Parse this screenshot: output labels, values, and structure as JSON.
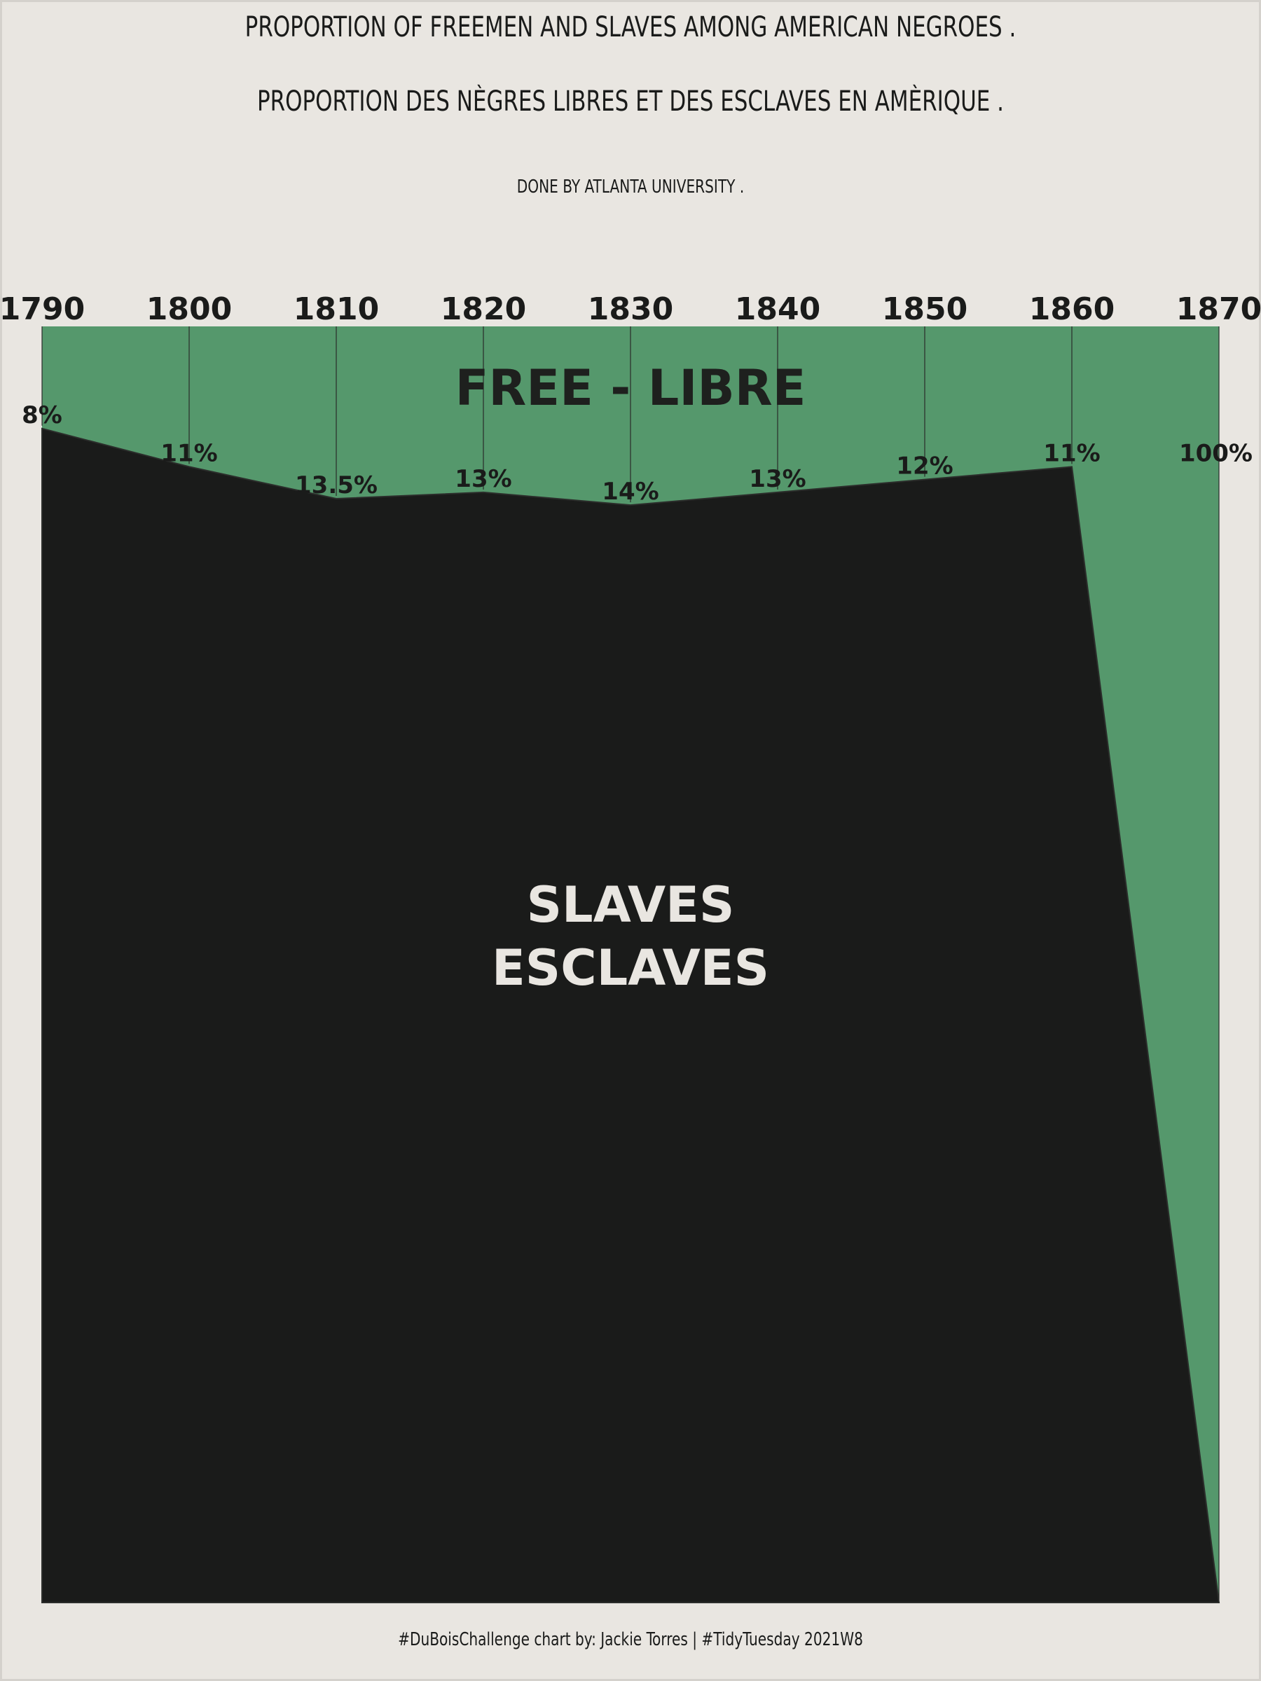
{
  "header": {
    "title_en": "PROPORTION OF FREEMEN AND SLAVES AMONG AMERICAN NEGROES .",
    "title_fr": "PROPORTION DES NÈGRES LIBRES ET DES ESCLAVES EN AMÈRIQUE .",
    "subtitle": "DONE BY ATLANTA UNIVERSITY ."
  },
  "footer": {
    "caption": "#DuBoisChallenge chart by: Jackie Torres | #TidyTuesday 2021W8"
  },
  "colors": {
    "background": "#e9e6e1",
    "free": "#55986c",
    "slave": "#1a1b1a",
    "text_dark": "#1a1b1a",
    "text_light": "#e9e6e1"
  },
  "chart_data": {
    "type": "area",
    "x": [
      1790,
      1800,
      1810,
      1820,
      1830,
      1840,
      1850,
      1860,
      1870
    ],
    "tick_labels": [
      "1790",
      "1800",
      "1810",
      "1820",
      "1830",
      "1840",
      "1850",
      "1860",
      "1870"
    ],
    "series": [
      {
        "name": "FREE - LIBRE",
        "values": [
          8,
          11,
          13.5,
          13,
          14,
          13,
          12,
          11,
          100
        ],
        "labels": [
          "8%",
          "11%",
          "13.5%",
          "13%",
          "14%",
          "13%",
          "12%",
          "11%",
          "100%"
        ]
      },
      {
        "name": "SLAVES",
        "name_fr": "ESCLAVES",
        "values": [
          92,
          89,
          86.5,
          87,
          86,
          87,
          88,
          89,
          0
        ]
      }
    ],
    "ylim": [
      0,
      100
    ],
    "stacked": true,
    "x_axis_position": "top",
    "grid": "vertical lines at each year in free region",
    "legend": "none (labels inside areas)"
  }
}
